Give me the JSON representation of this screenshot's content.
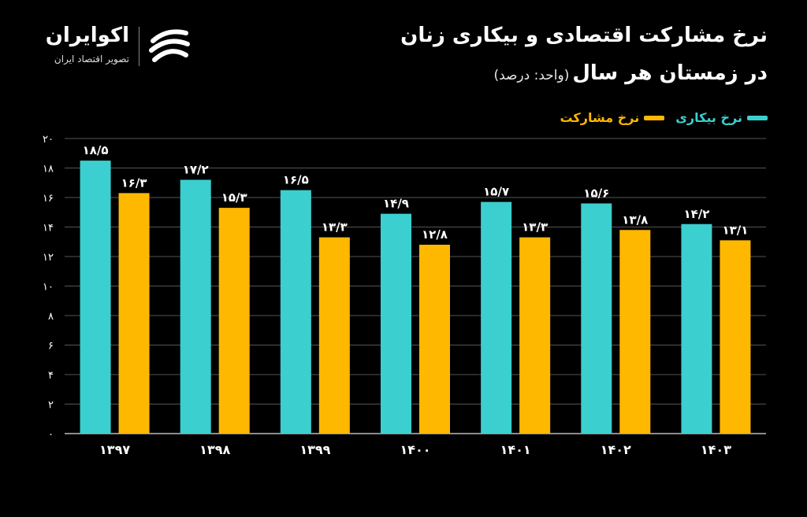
{
  "header": {
    "title_line1": "نرخ مشارکت اقتصادی و بیکاری زنان",
    "title_line2": "در زمستان هر سال",
    "unit": "(واحد: درصد)"
  },
  "brand": {
    "name": "اکوایران",
    "tagline": "تصویر اقتصاد ایران"
  },
  "colors": {
    "background": "#000000",
    "unemployment": "#3ccfcf",
    "participation": "#ffb800",
    "grid": "#555555",
    "text": "#ffffff"
  },
  "chart_data": {
    "type": "bar",
    "categories": [
      "۱۳۹۷",
      "۱۳۹۸",
      "۱۳۹۹",
      "۱۴۰۰",
      "۱۴۰۱",
      "۱۴۰۲",
      "۱۴۰۳"
    ],
    "series": [
      {
        "name": "نرخ بیکاری",
        "color": "#3ccfcf",
        "values": [
          18.5,
          17.2,
          16.5,
          14.9,
          15.7,
          15.6,
          14.2
        ],
        "labels": [
          "۱۸/۵",
          "۱۷/۲",
          "۱۶/۵",
          "۱۴/۹",
          "۱۵/۷",
          "۱۵/۶",
          "۱۴/۲"
        ]
      },
      {
        "name": "نرخ مشارکت",
        "color": "#ffb800",
        "values": [
          16.3,
          15.3,
          13.3,
          12.8,
          13.3,
          13.8,
          13.1
        ],
        "labels": [
          "۱۶/۳",
          "۱۵/۳",
          "۱۳/۳",
          "۱۲/۸",
          "۱۳/۳",
          "۱۳/۸",
          "۱۳/۱"
        ]
      }
    ],
    "yticks": [
      0,
      2,
      4,
      6,
      8,
      10,
      12,
      14,
      16,
      18,
      20
    ],
    "ytick_labels": [
      "۰",
      "۲",
      "۴",
      "۶",
      "۸",
      "۱۰",
      "۱۲",
      "۱۴",
      "۱۶",
      "۱۸",
      "۲۰"
    ],
    "ylim": [
      0,
      20
    ],
    "grid": true,
    "legend_position": "top-right"
  }
}
